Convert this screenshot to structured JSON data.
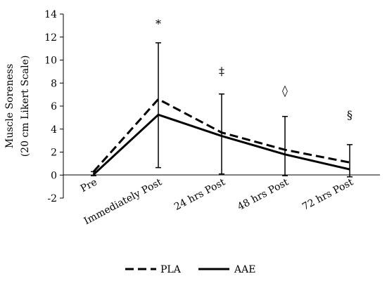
{
  "chart_data": {
    "type": "line",
    "ylabel_line1": "Muscle Soreness",
    "ylabel_line2": "(20 cm Likert Scale)",
    "ylim": [
      -2,
      14
    ],
    "yticks": [
      "-2",
      "0",
      "2",
      "4",
      "6",
      "8",
      "10",
      "12",
      "14"
    ],
    "categories": [
      "Pre",
      "Immediately Post",
      "24 hrs Post",
      "48 hrs Post",
      "72 hrs Post"
    ],
    "series": [
      {
        "name": "PLA",
        "style": "dashed",
        "color": "#000000",
        "values": [
          0.3,
          6.6,
          3.7,
          2.2,
          1.1
        ]
      },
      {
        "name": "AAE",
        "style": "solid",
        "color": "#000000",
        "values": [
          0.05,
          5.25,
          3.4,
          1.8,
          0.5
        ]
      }
    ],
    "error_bars": {
      "upper": [
        0.3,
        11.5,
        7.05,
        5.1,
        2.65
      ],
      "lower": [
        -0.05,
        0.65,
        0.1,
        -0.05,
        -0.15
      ]
    },
    "annotations": [
      {
        "category_index": 1,
        "text": "*",
        "y": 12.8
      },
      {
        "category_index": 2,
        "text": "‡",
        "y": 8.7
      },
      {
        "category_index": 3,
        "text": "◊",
        "y": 7.0
      },
      {
        "category_index": 4,
        "text": "§",
        "y": 4.9
      }
    ],
    "grid": false,
    "legend_position": "bottom"
  }
}
